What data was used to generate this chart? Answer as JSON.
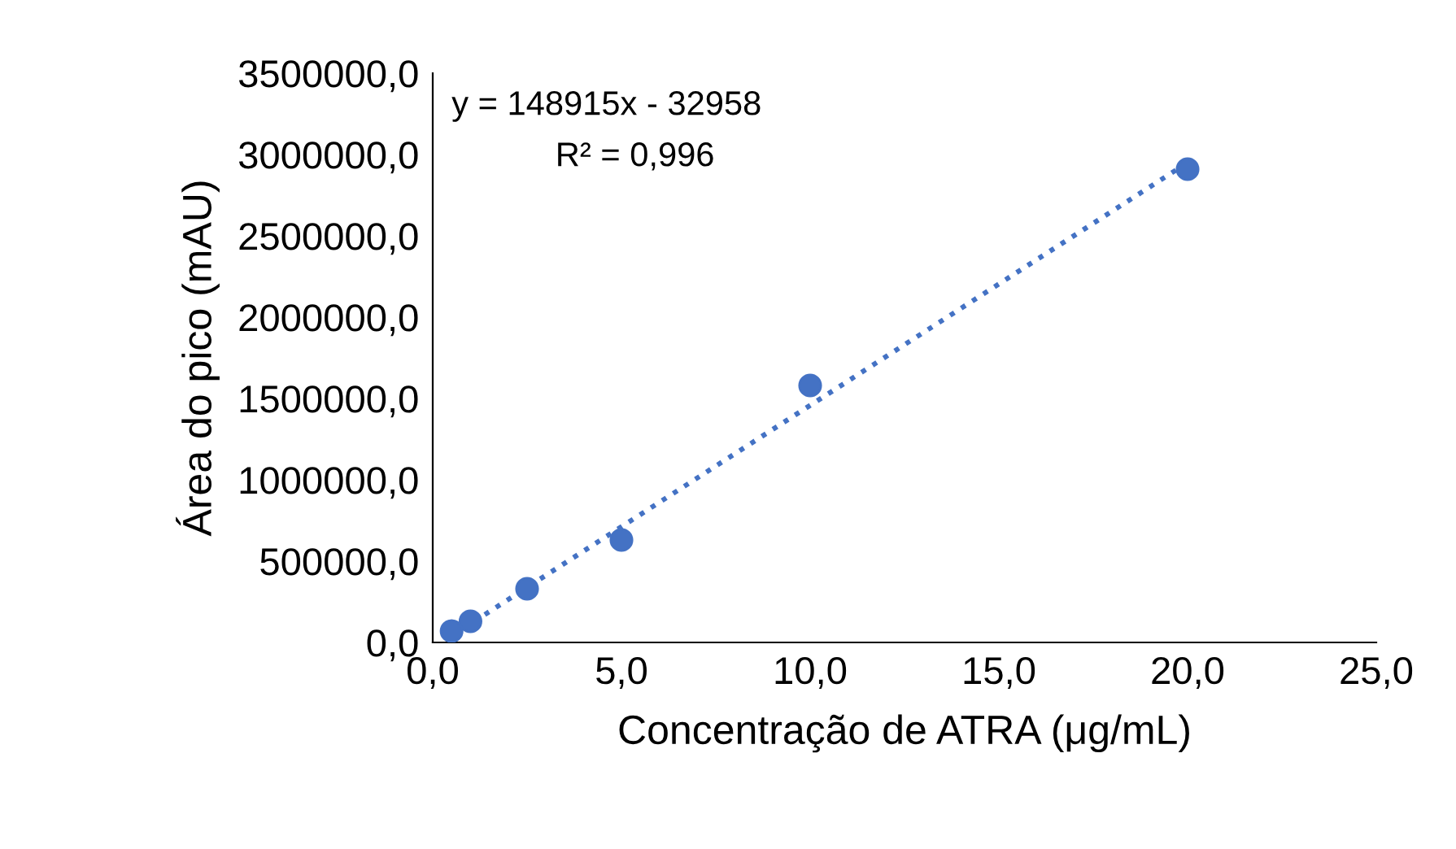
{
  "chart_data": {
    "type": "scatter",
    "xlabel": "Concentração de ATRA (μg/mL)",
    "ylabel": "Área do pico (mAU)",
    "series": [
      {
        "color": "#4472c4",
        "marker": "circle",
        "x": [
          0.5,
          1.0,
          2.5,
          5.0,
          10.0,
          20.0
        ],
        "values": [
          70000,
          130000,
          330000,
          630000,
          1580000,
          2910000
        ]
      },
      {
        "type": "line",
        "color": "#4472c4",
        "line_style": "dotted",
        "marker": "none",
        "x": [
          0.5,
          20.0
        ],
        "values": [
          40000,
          2950000
        ]
      }
    ],
    "annotations": [
      "y = 148915x - 32958",
      "R² = 0,996"
    ],
    "xlim": [
      0,
      25
    ],
    "xticks": [
      {
        "value": 0,
        "label": "0,0"
      },
      {
        "value": 5,
        "label": "5,0"
      },
      {
        "value": 10,
        "label": "10,0"
      },
      {
        "value": 15,
        "label": "15,0"
      },
      {
        "value": 20,
        "label": "20,0"
      },
      {
        "value": 25,
        "label": "25,0"
      }
    ],
    "ylim": [
      0,
      3500000
    ],
    "yticks": [
      {
        "value": 0,
        "label": "0,0"
      },
      {
        "value": 500000,
        "label": "500000,0"
      },
      {
        "value": 1000000,
        "label": "1000000,0"
      },
      {
        "value": 1500000,
        "label": "1500000,0"
      },
      {
        "value": 2000000,
        "label": "2000000,0"
      },
      {
        "value": 2500000,
        "label": "2500000,0"
      },
      {
        "value": 3000000,
        "label": "3000000,0"
      },
      {
        "value": 3500000,
        "label": "3500000,0"
      }
    ],
    "grid": false,
    "legend": false
  }
}
